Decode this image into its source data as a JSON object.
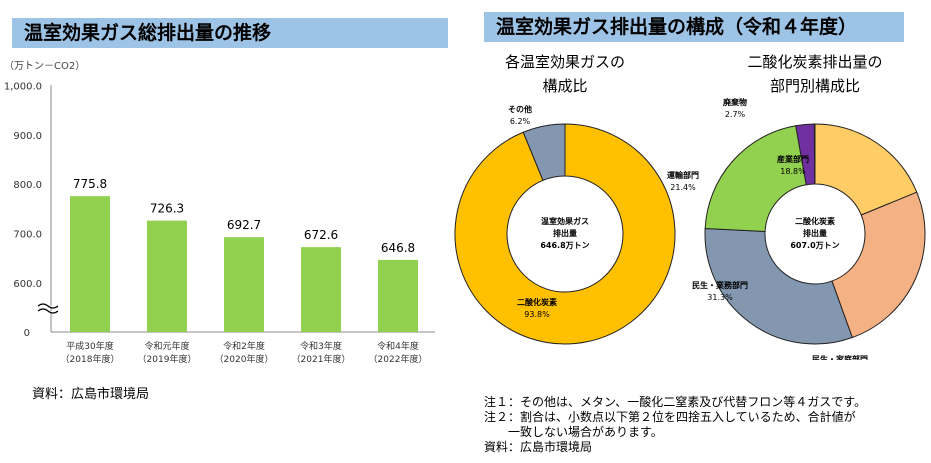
{
  "left": {
    "title": "温室効果ガス総排出量の推移",
    "source": "資料：広島市環境局"
  },
  "right": {
    "title": "温室効果ガス排出量の構成（令和４年度）",
    "sub1": [
      "各温室効果ガスの",
      "構成比"
    ],
    "sub2": [
      "二酸化炭素排出量の",
      "部門別構成比"
    ],
    "notes": [
      "注１：その他は、メタン、一酸化二窒素及び代替フロン等４ガスです。",
      "注２：割合は、小数点以下第２位を四捨五入しているため、合計値が",
      "　　一致しない場合があります。",
      "資料：広島市環境局"
    ]
  },
  "chart_data": [
    {
      "type": "bar",
      "ylabel": "（万トン－CO2）",
      "ylim": [
        0,
        1000
      ],
      "yticks": [
        "1,000.0",
        "900.0",
        "800.0",
        "700.0",
        "600.0",
        "0"
      ],
      "axis_break": true,
      "categories": [
        [
          "平成30年度",
          "（2018年度）"
        ],
        [
          "令和元年度",
          "（2019年度）"
        ],
        [
          "令和2年度",
          "（2020年度）"
        ],
        [
          "令和3年度",
          "（2021年度）"
        ],
        [
          "令和4年度",
          "（2022年度）"
        ]
      ],
      "values": [
        775.8,
        726.3,
        692.7,
        672.6,
        646.8
      ],
      "value_labels": [
        "775.8",
        "726.3",
        "692.7",
        "672.6",
        "646.8"
      ],
      "color": "#92d050"
    },
    {
      "type": "pie",
      "donut": true,
      "center": [
        "温室効果ガス",
        "排出量",
        "646.8万トン"
      ],
      "slices": [
        {
          "label": "二酸化炭素",
          "value": 93.8,
          "pct": "93.8%",
          "color": "#ffc000"
        },
        {
          "label": "その他",
          "value": 6.2,
          "pct": "6.2%",
          "color": "#8497b0"
        }
      ]
    },
    {
      "type": "pie",
      "donut": true,
      "center": [
        "二酸化炭素",
        "排出量",
        "607.0万トン"
      ],
      "slices": [
        {
          "label": "産業部門",
          "value": 18.8,
          "pct": "18.8%",
          "color": "#ffcc66"
        },
        {
          "label": "民生・家庭部門",
          "value": 25.7,
          "pct": "25.7%",
          "color": "#f4b183"
        },
        {
          "label": "民生・業務部門",
          "value": 31.3,
          "pct": "31.3%",
          "color": "#8497b0"
        },
        {
          "label": "運輸部門",
          "value": 21.4,
          "pct": "21.4%",
          "color": "#92d050"
        },
        {
          "label": "廃棄物",
          "value": 2.7,
          "pct": "2.7%",
          "color": "#7030a0"
        }
      ]
    }
  ]
}
